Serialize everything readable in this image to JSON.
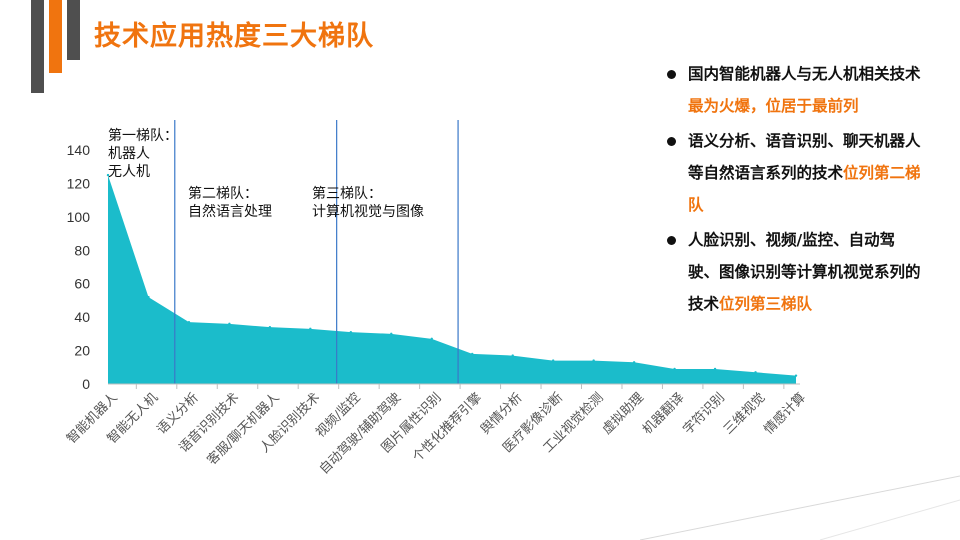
{
  "slide": {
    "title": "技术应用热度三大梯队"
  },
  "bullets": [
    {
      "text": "国内智能机器人与无人机相关技术",
      "highlight": "最为火爆，位居于最前列"
    },
    {
      "text": "语义分析、语音识别、聊天机器人等自然语言系列的技术",
      "highlight": "位列第二梯队"
    },
    {
      "text": "人脸识别、视频/监控、自动驾驶、图像识别等计算机视觉系列的技术",
      "highlight": "位列第三梯队"
    }
  ],
  "chart_data": {
    "type": "area",
    "title": "",
    "xlabel": "",
    "ylabel": "",
    "ylim": [
      0,
      140
    ],
    "yticks": [
      0,
      20,
      40,
      60,
      80,
      100,
      120,
      140
    ],
    "grid": false,
    "color": "#1bbccb",
    "categories": [
      "智能机器人",
      "智能无人机",
      "语义分析",
      "语音识别技术",
      "客服/聊天机器人",
      "人脸识别技术",
      "视频/监控",
      "自动驾驶/辅助驾驶",
      "图片属性识别",
      "个性化推荐引擎",
      "舆情分析",
      "医疗影像诊断",
      "工业视觉检测",
      "虚拟助理",
      "机器翻译",
      "字符识别",
      "三维视觉",
      "情感计算"
    ],
    "values": [
      125,
      52,
      37,
      36,
      34,
      33,
      31,
      30,
      27,
      18,
      17,
      14,
      14,
      13,
      9,
      9,
      7,
      5
    ],
    "tier_annotations": [
      {
        "label": "第一梯队：",
        "lines": [
          "机器人",
          "无人机"
        ],
        "after_index": 1
      },
      {
        "label": "第二梯队：",
        "lines": [
          "自然语言处理"
        ],
        "after_index": 5
      },
      {
        "label": "第三梯队：",
        "lines": [
          "计算机视觉与图像"
        ],
        "after_index": 8
      }
    ],
    "tier_line_color": "#3a78c8"
  }
}
